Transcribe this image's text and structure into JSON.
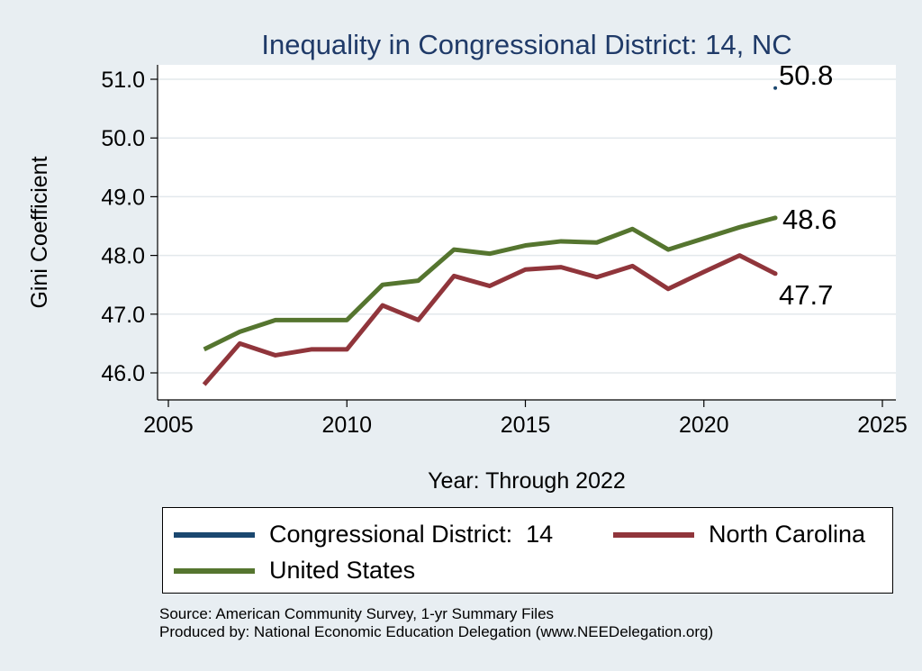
{
  "colors": {
    "background": "#e8eef2",
    "plot_background": "#ffffff",
    "title": "#1f3a68",
    "district": "#1a476f",
    "north_carolina": "#90353b",
    "united_states": "#55752f"
  },
  "chart_data": {
    "type": "line",
    "title": "Inequality in Congressional District:  14, NC",
    "xlabel": "Year: Through 2022",
    "ylabel": "Gini Coefficient",
    "xlim": [
      2005,
      2025
    ],
    "ylim": [
      45.8,
      51.2
    ],
    "xticks": [
      2005,
      2010,
      2015,
      2020,
      2025
    ],
    "yticks": [
      46.0,
      47.0,
      48.0,
      49.0,
      50.0,
      51.0
    ],
    "ytick_labels": [
      "46.0",
      "47.0",
      "48.0",
      "49.0",
      "50.0",
      "51.0"
    ],
    "grid": true,
    "legend_position": "bottom",
    "x": [
      2006,
      2007,
      2008,
      2009,
      2010,
      2011,
      2012,
      2013,
      2014,
      2015,
      2016,
      2017,
      2018,
      2019,
      2020,
      2021,
      2022
    ],
    "series": [
      {
        "name": "Congressional District:  14",
        "color_key": "district",
        "points": [
          [
            2022,
            50.85
          ]
        ],
        "end_label": "50.8"
      },
      {
        "name": "North Carolina",
        "color_key": "north_carolina",
        "values": [
          45.8,
          46.5,
          46.3,
          46.4,
          46.4,
          47.15,
          46.9,
          47.65,
          47.48,
          47.76,
          47.8,
          47.63,
          47.82,
          47.43,
          47.72,
          48.0,
          47.69
        ],
        "end_label": "47.7"
      },
      {
        "name": "United States",
        "color_key": "united_states",
        "values": [
          46.4,
          46.7,
          46.9,
          46.9,
          46.9,
          47.5,
          47.57,
          48.1,
          48.03,
          48.17,
          48.24,
          48.22,
          48.45,
          48.1,
          48.29,
          48.48,
          48.64
        ],
        "end_label": "48.6"
      }
    ]
  },
  "legend": {
    "items": [
      {
        "label": "Congressional District:  14",
        "color_key": "district"
      },
      {
        "label": "North Carolina",
        "color_key": "north_carolina"
      },
      {
        "label": "United States",
        "color_key": "united_states"
      }
    ]
  },
  "footer": {
    "source": "Source: American Community Survey, 1-yr Summary Files",
    "produced_by": "Produced by: National Economic Education Delegation (www.NEEDelegation.org)"
  }
}
